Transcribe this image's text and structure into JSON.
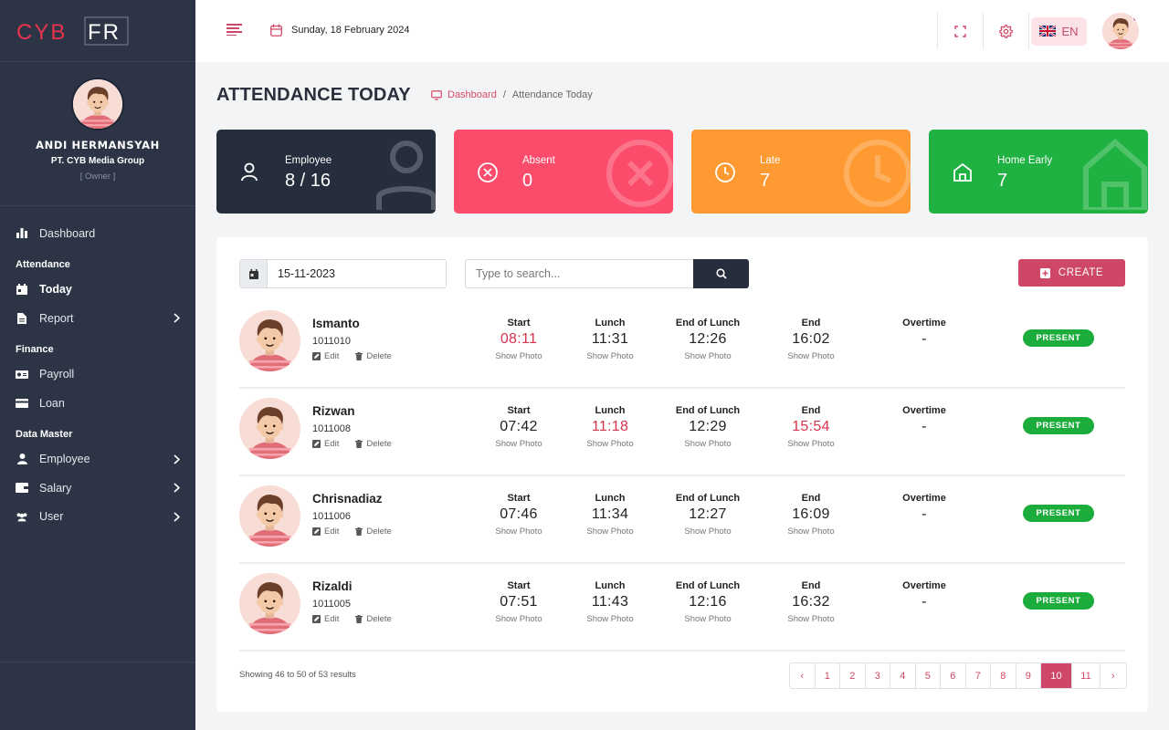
{
  "brand": {
    "logo_text_1": "CYB",
    "logo_text_2": "FR"
  },
  "profile": {
    "name": "ANDI HERMANSYAH",
    "company": "PT. CYB Media Group",
    "role": "[ Owner ]"
  },
  "nav": {
    "dashboard": "Dashboard",
    "section_attendance": "Attendance",
    "today": "Today",
    "report": "Report",
    "section_finance": "Finance",
    "payroll": "Payroll",
    "loan": "Loan",
    "section_data_master": "Data Master",
    "employee": "Employee",
    "salary": "Salary",
    "user": "User"
  },
  "topbar": {
    "date": "Sunday, 18 February 2024",
    "language": "EN"
  },
  "page": {
    "title": "ATTENDANCE TODAY",
    "breadcrumb_home": "Dashboard",
    "breadcrumb_current": "Attendance Today"
  },
  "cards": [
    {
      "label": "Employee",
      "value": "8 / 16",
      "color": "#262d3d"
    },
    {
      "label": "Absent",
      "value": "0",
      "color": "#fc4c6c"
    },
    {
      "label": "Late",
      "value": "7",
      "color": "#fe9a31"
    },
    {
      "label": "Home Early",
      "value": "7",
      "color": "#1fb141"
    }
  ],
  "filters": {
    "date": "15-11-2023",
    "search_placeholder": "Type to search...",
    "create_label": "CREATE"
  },
  "columns": {
    "start": "Start",
    "lunch": "Lunch",
    "end_of_lunch": "End of Lunch",
    "end": "End",
    "overtime": "Overtime",
    "show_photo": "Show Photo"
  },
  "actions": {
    "edit": "Edit",
    "delete": "Delete"
  },
  "rows": [
    {
      "name": "Ismanto",
      "id": "1011010",
      "start": "08:11",
      "lunch": "11:31",
      "end_lunch": "12:26",
      "end": "16:02",
      "overtime": "-",
      "status": "PRESENT"
    },
    {
      "name": "Rizwan",
      "id": "1011008",
      "start": "07:42",
      "lunch": "11:18",
      "end_lunch": "12:29",
      "end": "15:54",
      "overtime": "-",
      "status": "PRESENT"
    },
    {
      "name": "Chrisnadiaz",
      "id": "1011006",
      "start": "07:46",
      "lunch": "11:34",
      "end_lunch": "12:27",
      "end": "16:09",
      "overtime": "-",
      "status": "PRESENT"
    },
    {
      "name": "Rizaldi",
      "id": "1011005",
      "start": "07:51",
      "lunch": "11:43",
      "end_lunch": "12:16",
      "end": "16:32",
      "overtime": "-",
      "status": "PRESENT"
    }
  ],
  "late_color": "#d8334f",
  "pagination": {
    "summary": "Showing 46 to 50 of 53 results",
    "prev": "‹",
    "next": "›",
    "pages": [
      "1",
      "2",
      "3",
      "4",
      "5",
      "6",
      "7",
      "8",
      "9",
      "10",
      "11"
    ],
    "current": "10"
  }
}
